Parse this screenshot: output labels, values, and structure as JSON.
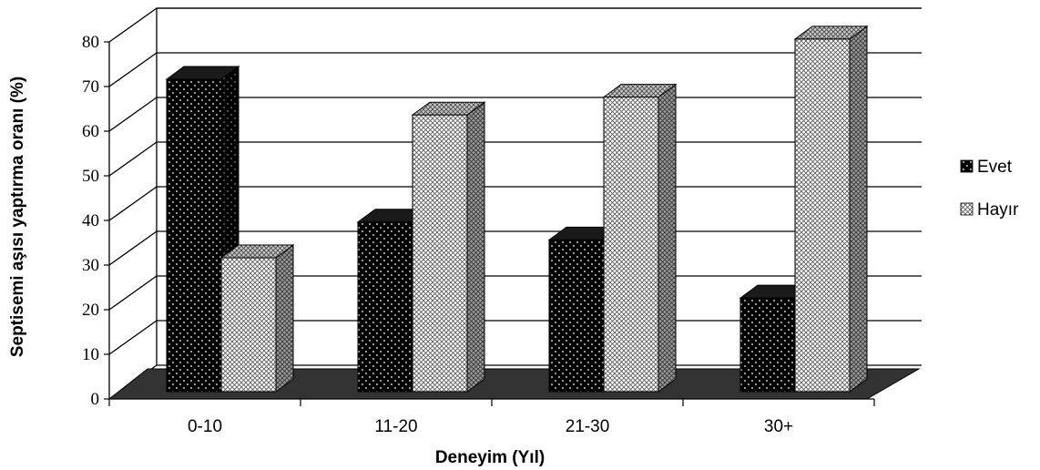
{
  "chart_data": {
    "type": "bar",
    "style": "3d-clustered-column",
    "categories": [
      "0-10",
      "11-20",
      "21-30",
      "30+"
    ],
    "series": [
      {
        "name": "Evet",
        "values": [
          70,
          38,
          34,
          21
        ],
        "color": "#000000",
        "pattern": "dots"
      },
      {
        "name": "Hayır",
        "values": [
          30,
          62,
          66,
          79
        ],
        "color": "#ffffff",
        "pattern": "crosshatch"
      }
    ],
    "xlabel": "Deneyim (Yıl)",
    "ylabel": "Septisemi aşısı yaptırma oranı (%)",
    "ylim": [
      0,
      80
    ],
    "yticks": [
      "0",
      "10",
      "20",
      "30",
      "40",
      "50",
      "60",
      "70",
      "80"
    ],
    "grid": true,
    "legend_position": "right",
    "floor_color": "#333333"
  }
}
